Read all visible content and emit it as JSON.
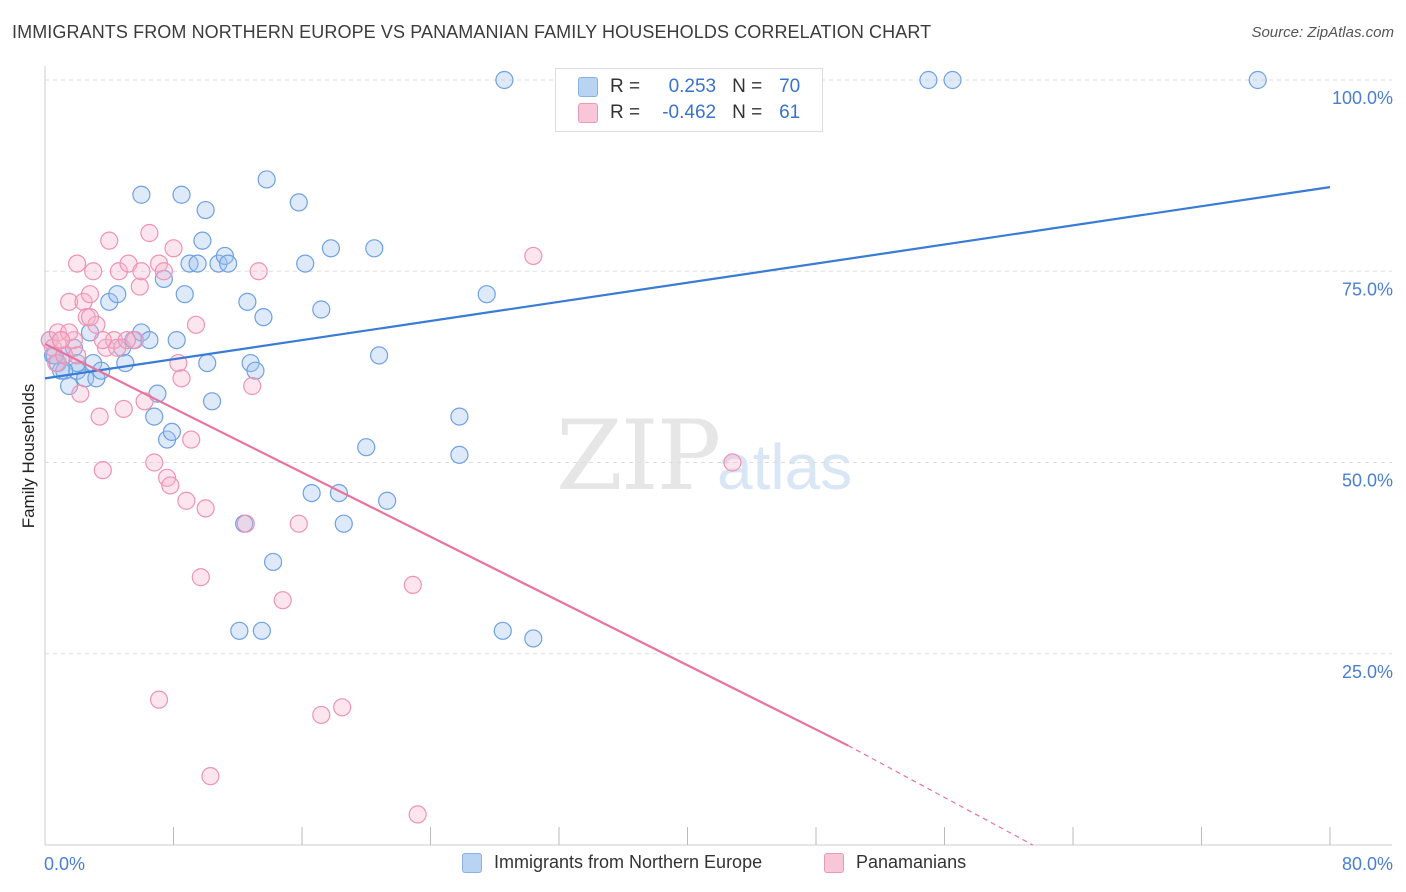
{
  "title": "IMMIGRANTS FROM NORTHERN EUROPE VS PANAMANIAN FAMILY HOUSEHOLDS CORRELATION CHART",
  "source": "Source: ZipAtlas.com",
  "watermark": {
    "zip": "ZIP",
    "atlas": "atlas"
  },
  "legend": {
    "r_label": "R =",
    "n_label": "N =",
    "rows": [
      {
        "r": "0.253",
        "n": "70"
      },
      {
        "r": "-0.462",
        "n": "61"
      }
    ]
  },
  "bottom_legend": [
    "Immigrants from Northern Europe",
    "Panamanians"
  ],
  "colors": {
    "blue": "#3a7bd5",
    "pink": "#e8739c",
    "grid": "#dddddd"
  },
  "chart_data": {
    "type": "scatter",
    "xlabel": "",
    "ylabel": "Family Households",
    "xlim": [
      0,
      80
    ],
    "ylim": [
      0,
      100
    ],
    "x_tick_labels": [
      "0.0%",
      "80.0%"
    ],
    "y_ticks": [
      25,
      50,
      75,
      100
    ],
    "y_tick_labels": [
      "25.0%",
      "50.0%",
      "75.0%",
      "100.0%"
    ],
    "series": [
      {
        "name": "Immigrants from Northern Europe",
        "color": "#6fa1e3",
        "points": [
          [
            0.3,
            66
          ],
          [
            0.5,
            64
          ],
          [
            0.8,
            63
          ],
          [
            1.0,
            62
          ],
          [
            1.2,
            64
          ],
          [
            1.5,
            60
          ],
          [
            1.8,
            65
          ],
          [
            2.0,
            62
          ],
          [
            2.5,
            61
          ],
          [
            2.8,
            67
          ],
          [
            3.0,
            63
          ],
          [
            3.2,
            61
          ],
          [
            3.5,
            62
          ],
          [
            4.0,
            71
          ],
          [
            4.5,
            72
          ],
          [
            4.8,
            65
          ],
          [
            5.0,
            63
          ],
          [
            5.5,
            66
          ],
          [
            6.0,
            67
          ],
          [
            6.5,
            66
          ],
          [
            6.8,
            56
          ],
          [
            7.0,
            59
          ],
          [
            7.4,
            74
          ],
          [
            7.6,
            53
          ],
          [
            7.9,
            54
          ],
          [
            8.2,
            66
          ],
          [
            8.7,
            72
          ],
          [
            9.0,
            76
          ],
          [
            9.5,
            76
          ],
          [
            9.8,
            79
          ],
          [
            10.1,
            63
          ],
          [
            10.4,
            58
          ],
          [
            10.8,
            76
          ],
          [
            11.2,
            77
          ],
          [
            11.4,
            76
          ],
          [
            12.4,
            42
          ],
          [
            12.6,
            71
          ],
          [
            12.8,
            63
          ],
          [
            13.1,
            62
          ],
          [
            13.6,
            69
          ],
          [
            13.8,
            87
          ],
          [
            14.2,
            37
          ],
          [
            15.8,
            84
          ],
          [
            16.2,
            76
          ],
          [
            16.6,
            46
          ],
          [
            17.2,
            70
          ],
          [
            17.8,
            78
          ],
          [
            18.3,
            46
          ],
          [
            18.6,
            42
          ],
          [
            20.0,
            52
          ],
          [
            20.5,
            78
          ],
          [
            20.8,
            64
          ],
          [
            21.3,
            45
          ],
          [
            25.8,
            56
          ],
          [
            25.8,
            51
          ],
          [
            27.5,
            72
          ],
          [
            28.5,
            28
          ],
          [
            30.4,
            27
          ],
          [
            12.1,
            28
          ],
          [
            13.5,
            28
          ],
          [
            28.6,
            100
          ],
          [
            55.0,
            100
          ],
          [
            56.5,
            100
          ],
          [
            75.5,
            100
          ],
          [
            6.0,
            85
          ],
          [
            8.5,
            85
          ],
          [
            10.0,
            83
          ],
          [
            2.0,
            63
          ],
          [
            1.2,
            62
          ],
          [
            0.6,
            64
          ]
        ]
      },
      {
        "name": "Panamanians",
        "color": "#ef93b4",
        "points": [
          [
            0.3,
            66
          ],
          [
            0.5,
            65
          ],
          [
            0.7,
            63
          ],
          [
            0.8,
            67
          ],
          [
            1.0,
            66
          ],
          [
            1.2,
            64
          ],
          [
            1.5,
            71
          ],
          [
            1.8,
            66
          ],
          [
            2.0,
            64
          ],
          [
            2.2,
            59
          ],
          [
            2.4,
            71
          ],
          [
            2.6,
            69
          ],
          [
            2.8,
            72
          ],
          [
            3.0,
            75
          ],
          [
            3.2,
            68
          ],
          [
            3.4,
            56
          ],
          [
            3.6,
            49
          ],
          [
            3.8,
            65
          ],
          [
            4.0,
            79
          ],
          [
            4.3,
            66
          ],
          [
            4.6,
            75
          ],
          [
            4.9,
            57
          ],
          [
            5.2,
            76
          ],
          [
            5.6,
            66
          ],
          [
            5.9,
            73
          ],
          [
            6.2,
            58
          ],
          [
            6.5,
            80
          ],
          [
            6.8,
            50
          ],
          [
            7.1,
            76
          ],
          [
            7.4,
            75
          ],
          [
            7.6,
            48
          ],
          [
            7.8,
            47
          ],
          [
            8.0,
            78
          ],
          [
            8.3,
            63
          ],
          [
            8.5,
            61
          ],
          [
            8.8,
            45
          ],
          [
            9.1,
            53
          ],
          [
            9.4,
            68
          ],
          [
            9.7,
            35
          ],
          [
            10.0,
            44
          ],
          [
            10.3,
            9
          ],
          [
            12.5,
            42
          ],
          [
            12.9,
            60
          ],
          [
            13.3,
            75
          ],
          [
            14.8,
            32
          ],
          [
            15.8,
            42
          ],
          [
            17.2,
            17
          ],
          [
            18.5,
            18
          ],
          [
            22.9,
            34
          ],
          [
            23.2,
            4
          ],
          [
            30.4,
            77
          ],
          [
            42.8,
            50
          ],
          [
            7.1,
            19
          ],
          [
            2.0,
            76
          ],
          [
            1.5,
            67
          ],
          [
            1.0,
            66
          ],
          [
            2.8,
            69
          ],
          [
            3.6,
            66
          ],
          [
            4.5,
            65
          ],
          [
            5.1,
            66
          ],
          [
            6.0,
            75
          ]
        ]
      }
    ],
    "trendlines": [
      {
        "series": "Immigrants from Northern Europe",
        "x": [
          0,
          80
        ],
        "y": [
          61,
          86
        ]
      },
      {
        "series": "Panamanians",
        "x": [
          0,
          50
        ],
        "y": [
          65.5,
          13
        ],
        "dashed_to": [
          61.5,
          0
        ]
      }
    ]
  }
}
